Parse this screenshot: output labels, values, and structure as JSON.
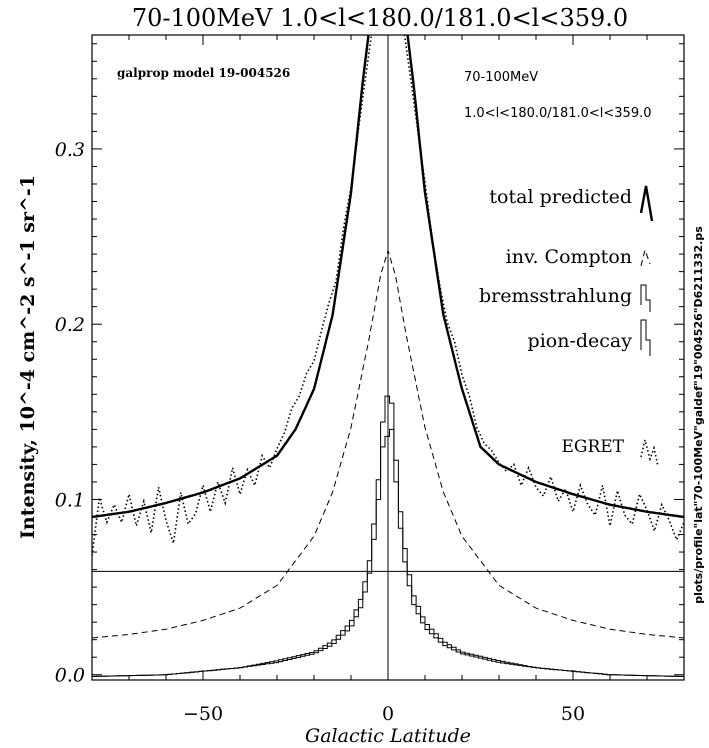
{
  "chart_data": {
    "type": "line",
    "title": "70-100MeV   1.0<l<180.0/181.0<l<359.0",
    "xlabel": "Galactic Latitude",
    "ylabel": "Intensity, 10^-4 cm^-2 s^-1 sr^-1",
    "xlim": [
      -80,
      80
    ],
    "ylim": [
      -0.003,
      0.365
    ],
    "x_ticks": [
      -50,
      0,
      50
    ],
    "y_ticks": [
      0.0,
      0.1,
      0.2,
      0.3
    ],
    "x_tick_labels": [
      "−50",
      "0",
      "50"
    ],
    "y_tick_labels": [
      "0.0",
      "0.1",
      "0.2",
      "0.3"
    ],
    "hline": 0.059,
    "vline": 0,
    "annotations": {
      "model": "galprop model 19-004526",
      "energy": "70-100MeV",
      "lrange": "1.0<l<180.0/181.0<l<359.0",
      "side_label": "plots/profile\"lat\"70-100MeV\"galdef\"19\"004526\"D6211332.ps"
    },
    "legend_position": "right",
    "series": [
      {
        "name": "total predicted",
        "style": "thick-solid",
        "x": [
          -80,
          -70,
          -60,
          -50,
          -40,
          -30,
          -25,
          -20,
          -15,
          -10,
          -7,
          -5,
          5,
          7,
          10,
          15,
          20,
          25,
          30,
          40,
          50,
          60,
          70,
          80
        ],
        "y": [
          0.09,
          0.093,
          0.098,
          0.104,
          0.112,
          0.125,
          0.14,
          0.163,
          0.205,
          0.275,
          0.335,
          0.37,
          0.37,
          0.335,
          0.275,
          0.205,
          0.163,
          0.13,
          0.12,
          0.11,
          0.103,
          0.097,
          0.093,
          0.09
        ]
      },
      {
        "name": "inv. Compton",
        "style": "dashed",
        "x": [
          -80,
          -70,
          -60,
          -50,
          -40,
          -30,
          -20,
          -15,
          -10,
          -5,
          -2,
          0,
          2,
          5,
          10,
          15,
          20,
          30,
          40,
          50,
          60,
          70,
          80
        ],
        "y": [
          0.021,
          0.023,
          0.026,
          0.031,
          0.038,
          0.051,
          0.079,
          0.104,
          0.141,
          0.193,
          0.228,
          0.242,
          0.228,
          0.193,
          0.141,
          0.104,
          0.079,
          0.051,
          0.038,
          0.031,
          0.026,
          0.023,
          0.021
        ]
      },
      {
        "name": "bremsstrahlung",
        "style": "histogram",
        "x": [
          -80,
          -60,
          -50,
          -40,
          -30,
          -20,
          -15,
          -10,
          -7,
          -5,
          -3,
          -2,
          -1,
          0,
          1,
          2,
          3,
          5,
          7,
          10,
          15,
          20,
          30,
          40,
          50,
          60,
          80
        ],
        "y": [
          -0.001,
          0.0,
          0.002,
          0.004,
          0.007,
          0.012,
          0.017,
          0.027,
          0.04,
          0.058,
          0.09,
          0.115,
          0.14,
          0.135,
          0.14,
          0.115,
          0.09,
          0.058,
          0.04,
          0.027,
          0.017,
          0.012,
          0.007,
          0.004,
          0.002,
          0.0,
          -0.001
        ]
      },
      {
        "name": "pion-decay",
        "style": "histogram",
        "x": [
          -80,
          -60,
          -50,
          -40,
          -30,
          -20,
          -15,
          -10,
          -7,
          -5,
          -3,
          -2,
          -1,
          0,
          1,
          2,
          3,
          5,
          7,
          10,
          15,
          20,
          30,
          40,
          50,
          60,
          80
        ],
        "y": [
          -0.001,
          0.0,
          0.002,
          0.004,
          0.008,
          0.013,
          0.019,
          0.03,
          0.045,
          0.065,
          0.1,
          0.128,
          0.155,
          0.16,
          0.155,
          0.128,
          0.1,
          0.065,
          0.045,
          0.03,
          0.019,
          0.013,
          0.008,
          0.004,
          0.002,
          0.0,
          -0.001
        ]
      },
      {
        "name": "EGRET",
        "style": "dotted",
        "x": [
          -80,
          -78,
          -76,
          -74,
          -72,
          -70,
          -68,
          -66,
          -64,
          -62,
          -60,
          -58,
          -56,
          -54,
          -52,
          -50,
          -48,
          -46,
          -44,
          -42,
          -40,
          -38,
          -36,
          -34,
          -32,
          -30,
          -28,
          -26,
          -24,
          -22,
          -20,
          -18,
          -16,
          -14,
          -12,
          -10,
          -8,
          -6,
          -4,
          4,
          6,
          8,
          10,
          12,
          14,
          16,
          18,
          20,
          22,
          24,
          26,
          28,
          30,
          32,
          34,
          36,
          38,
          40,
          42,
          44,
          46,
          48,
          50,
          52,
          54,
          56,
          58,
          60,
          62,
          64,
          66,
          68,
          70,
          72,
          74,
          76,
          78,
          80
        ],
        "y": [
          0.068,
          0.101,
          0.087,
          0.097,
          0.087,
          0.103,
          0.085,
          0.099,
          0.081,
          0.107,
          0.088,
          0.075,
          0.104,
          0.086,
          0.092,
          0.108,
          0.093,
          0.11,
          0.098,
          0.118,
          0.103,
          0.117,
          0.108,
          0.125,
          0.118,
          0.129,
          0.138,
          0.152,
          0.159,
          0.172,
          0.179,
          0.196,
          0.212,
          0.225,
          0.255,
          0.278,
          0.311,
          0.342,
          0.372,
          0.372,
          0.342,
          0.311,
          0.281,
          0.248,
          0.222,
          0.201,
          0.19,
          0.171,
          0.159,
          0.141,
          0.132,
          0.128,
          0.121,
          0.116,
          0.12,
          0.108,
          0.118,
          0.107,
          0.102,
          0.113,
          0.099,
          0.106,
          0.093,
          0.108,
          0.097,
          0.091,
          0.108,
          0.085,
          0.105,
          0.091,
          0.086,
          0.103,
          0.094,
          0.082,
          0.097,
          0.088,
          0.077,
          0.087
        ]
      }
    ]
  }
}
